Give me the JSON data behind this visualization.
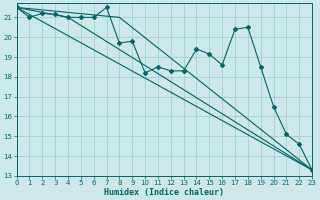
{
  "title": "",
  "xlabel": "Humidex (Indice chaleur)",
  "bg_color": "#cce8e8",
  "grid_color": "#99cccc",
  "line_color": "#006666",
  "xlim": [
    0,
    23
  ],
  "ylim": [
    13,
    21.7
  ],
  "yticks": [
    13,
    14,
    15,
    16,
    17,
    18,
    19,
    20,
    21
  ],
  "xticks": [
    0,
    1,
    2,
    3,
    4,
    5,
    6,
    7,
    8,
    9,
    10,
    11,
    12,
    13,
    14,
    15,
    16,
    17,
    18,
    19,
    20,
    21,
    22,
    23
  ],
  "main_line": {
    "x": [
      0,
      1,
      2,
      3,
      4,
      5,
      6,
      7,
      8,
      9,
      10,
      11,
      12,
      13,
      14,
      15,
      16,
      17,
      18,
      19,
      20,
      21,
      22,
      23
    ],
    "y": [
      21.5,
      21.0,
      21.2,
      21.15,
      21.0,
      21.0,
      21.0,
      21.5,
      19.7,
      19.8,
      18.2,
      18.5,
      18.3,
      18.3,
      19.4,
      19.15,
      18.6,
      20.4,
      20.5,
      18.5,
      16.5,
      15.1,
      14.6,
      13.3
    ]
  },
  "trend_lines": [
    {
      "x": [
        0,
        23
      ],
      "y": [
        21.5,
        13.3
      ]
    },
    {
      "x": [
        0,
        4,
        23
      ],
      "y": [
        21.5,
        21.0,
        13.3
      ]
    },
    {
      "x": [
        0,
        8,
        23
      ],
      "y": [
        21.5,
        21.0,
        13.3
      ]
    }
  ]
}
